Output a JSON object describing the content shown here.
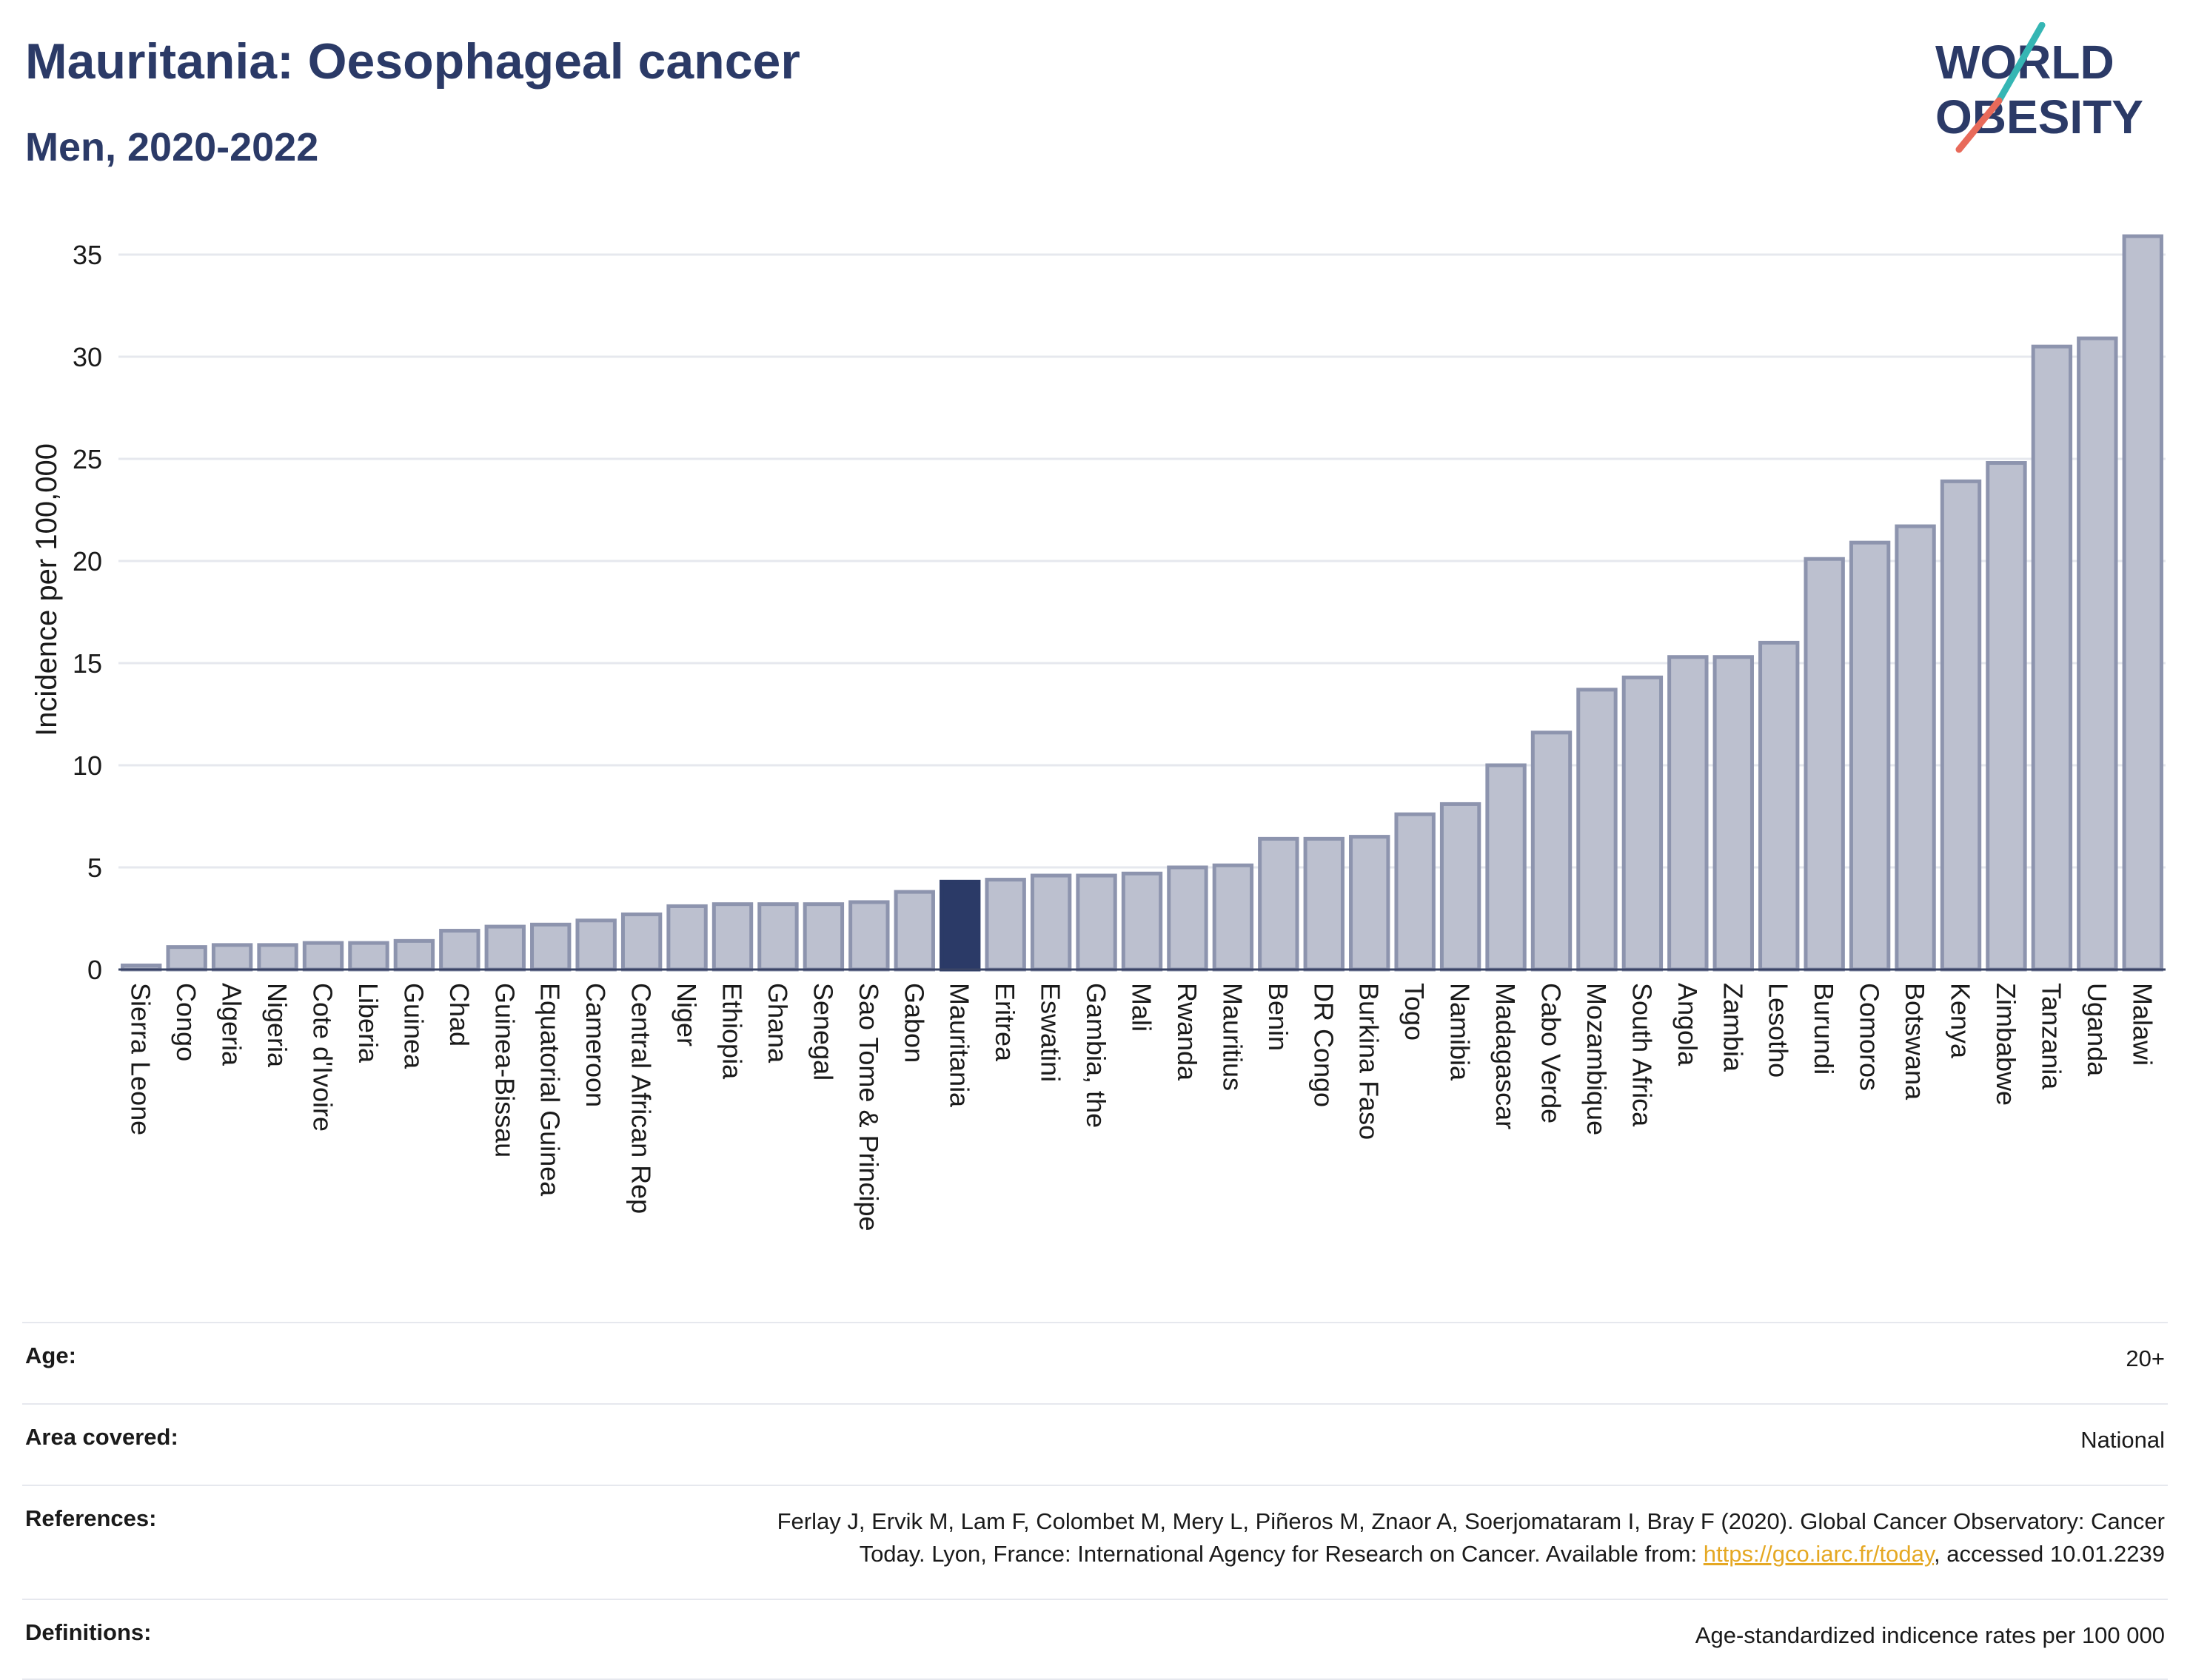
{
  "header": {
    "title": "Mauritania: Oesophageal cancer",
    "subtitle": "Men, 2020-2022"
  },
  "logo": {
    "line1": "WORLD",
    "line2": "OBESITY"
  },
  "chart_data": {
    "type": "bar",
    "ylabel": "Incidence per 100,000",
    "ylim": [
      0,
      36
    ],
    "yticks": [
      0,
      5,
      10,
      15,
      20,
      25,
      30,
      35
    ],
    "grid": true,
    "highlight": "Mauritania",
    "colors": {
      "bar": "#bcc0cf",
      "bar_edge": "#8d94ae",
      "highlight": "#2b3a67",
      "grid": "#e6e8ee"
    },
    "categories": [
      "Sierra Leone",
      "Congo",
      "Algeria",
      "Nigeria",
      "Cote d'Ivoire",
      "Liberia",
      "Guinea",
      "Chad",
      "Guinea-Bissau",
      "Equatorial Guinea",
      "Cameroon",
      "Central African Rep",
      "Niger",
      "Ethiopia",
      "Ghana",
      "Senegal",
      "Sao Tome & Principe",
      "Gabon",
      "Mauritania",
      "Eritrea",
      "Eswatini",
      "Gambia, the",
      "Mali",
      "Rwanda",
      "Mauritius",
      "Benin",
      "DR Congo",
      "Burkina Faso",
      "Togo",
      "Namibia",
      "Madagascar",
      "Cabo Verde",
      "Mozambique",
      "South Africa",
      "Angola",
      "Zambia",
      "Lesotho",
      "Burundi",
      "Comoros",
      "Botswana",
      "Kenya",
      "Zimbabwe",
      "Tanzania",
      "Uganda",
      "Malawi"
    ],
    "values": [
      0.2,
      1.1,
      1.2,
      1.2,
      1.3,
      1.3,
      1.4,
      1.9,
      2.1,
      2.2,
      2.4,
      2.7,
      3.1,
      3.2,
      3.2,
      3.2,
      3.3,
      3.8,
      4.3,
      4.4,
      4.6,
      4.6,
      4.7,
      5.0,
      5.1,
      6.4,
      6.4,
      6.5,
      7.6,
      8.1,
      10.0,
      11.6,
      13.7,
      14.3,
      15.3,
      15.3,
      16.0,
      20.1,
      20.9,
      21.7,
      23.9,
      24.8,
      30.5,
      30.9,
      35.9
    ]
  },
  "info": {
    "age_label": "Age:",
    "age_value": "20+",
    "area_label": "Area covered:",
    "area_value": "National",
    "references_label": "References:",
    "references_text_1": "Ferlay J, Ervik M, Lam F, Colombet M, Mery L, Piñeros M, Znaor A, Soerjomataram I, Bray F (2020). Global Cancer Observatory: Cancer",
    "references_text_2": "Today. Lyon, France: International Agency for Research on Cancer. Available from: ",
    "references_link": "https://gco.iarc.fr/today",
    "references_text_3": ", accessed 10.01.2239",
    "definitions_label": "Definitions:",
    "definitions_value": "Age-standardized indicence rates per 100 000"
  }
}
